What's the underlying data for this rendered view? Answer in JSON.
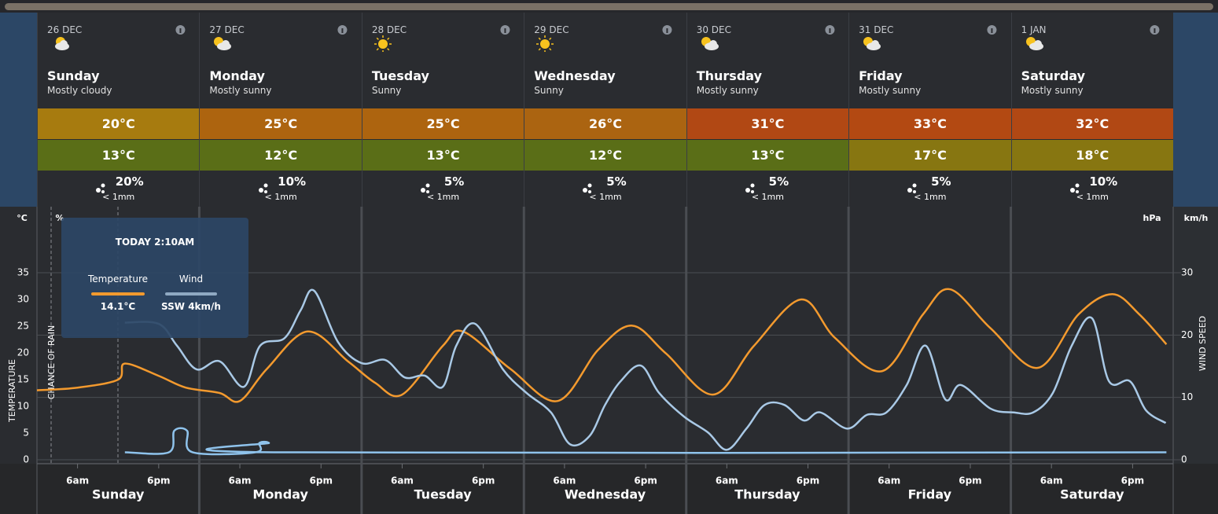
{
  "days": [
    {
      "date": "26 DEC",
      "day": "Sunday",
      "summary": "Mostly cloudy",
      "icon": "cloudy",
      "max": "20°C",
      "min": "13°C",
      "rain": "20%",
      "amount": "< 1mm",
      "max_color": "#a77b0f",
      "min_color": "#5a6e17"
    },
    {
      "date": "27 DEC",
      "day": "Monday",
      "summary": "Mostly sunny",
      "icon": "partly",
      "max": "25°C",
      "min": "12°C",
      "rain": "10%",
      "amount": "< 1mm",
      "max_color": "#ad640f",
      "min_color": "#5a6e17"
    },
    {
      "date": "28 DEC",
      "day": "Tuesday",
      "summary": "Sunny",
      "icon": "sunny",
      "max": "25°C",
      "min": "13°C",
      "rain": "5%",
      "amount": "< 1mm",
      "max_color": "#ad640f",
      "min_color": "#5a6e17"
    },
    {
      "date": "29 DEC",
      "day": "Wednesday",
      "summary": "Sunny",
      "icon": "sunny",
      "max": "26°C",
      "min": "12°C",
      "rain": "5%",
      "amount": "< 1mm",
      "max_color": "#ab6411",
      "min_color": "#5a6e17"
    },
    {
      "date": "30 DEC",
      "day": "Thursday",
      "summary": "Mostly sunny",
      "icon": "partly",
      "max": "31°C",
      "min": "13°C",
      "rain": "5%",
      "amount": "< 1mm",
      "max_color": "#b14814",
      "min_color": "#5a6e17"
    },
    {
      "date": "31 DEC",
      "day": "Friday",
      "summary": "Mostly sunny",
      "icon": "partly",
      "max": "33°C",
      "min": "17°C",
      "rain": "5%",
      "amount": "< 1mm",
      "max_color": "#b34912",
      "min_color": "#877611"
    },
    {
      "date": "1 JAN",
      "day": "Saturday",
      "summary": "Mostly sunny",
      "icon": "partly",
      "max": "32°C",
      "min": "18°C",
      "rain": "10%",
      "amount": "< 1mm",
      "max_color": "#b14814",
      "min_color": "#877611"
    }
  ],
  "chart_data": {
    "type": "line",
    "axis_labels": {
      "y": "°C",
      "y3": "%",
      "pressure": "hPa",
      "y2": "km/h"
    },
    "y_title": "TEMPERATURE",
    "y3_title": "CHANCE OF RAIN",
    "y2_title": "WIND SPEED",
    "xlim": [
      0,
      168
    ],
    "xticks": [
      {
        "value": 6,
        "label": "6am"
      },
      {
        "value": 18,
        "label": "6pm"
      },
      {
        "value": 30,
        "label": "6am"
      },
      {
        "value": 42,
        "label": "6pm"
      },
      {
        "value": 54,
        "label": "6am"
      },
      {
        "value": 66,
        "label": "6pm"
      },
      {
        "value": 78,
        "label": "6am"
      },
      {
        "value": 90,
        "label": "6pm"
      },
      {
        "value": 102,
        "label": "6am"
      },
      {
        "value": 114,
        "label": "6pm"
      },
      {
        "value": 126,
        "label": "6am"
      },
      {
        "value": 138,
        "label": "6pm"
      },
      {
        "value": 150,
        "label": "6am"
      },
      {
        "value": 162,
        "label": "6pm"
      }
    ],
    "ylim": [
      0,
      35
    ],
    "yticks": [
      0,
      5,
      10,
      15,
      20,
      25,
      30,
      35
    ],
    "y2lim": [
      0,
      30
    ],
    "y2ticks": [
      0,
      10,
      20,
      30
    ],
    "y3lim": [
      0,
      100
    ],
    "grid": true,
    "series": [
      {
        "name": "Temperature",
        "color": "#f39a2e",
        "x": [
          0,
          6,
          12,
          13,
          18,
          22,
          27,
          30,
          34,
          40,
          46,
          50,
          54,
          60,
          63,
          70,
          77,
          83,
          88,
          93,
          100,
          106,
          113,
          118,
          125,
          131,
          135,
          141,
          148,
          154,
          159,
          163,
          167
        ],
        "values": [
          13,
          13.5,
          15,
          18,
          15.7,
          13.5,
          12.5,
          11,
          17,
          24,
          18.4,
          14.4,
          12.2,
          21.3,
          24,
          17,
          11,
          20.6,
          25.1,
          19.9,
          12.2,
          21.3,
          30,
          22.8,
          16.6,
          27.2,
          31.9,
          24.6,
          17.2,
          27.2,
          31,
          27.2,
          21.6
        ]
      },
      {
        "name": "Wind",
        "color": "#a9c9e6",
        "axis": "y2",
        "x": [
          13,
          18,
          20.7,
          23.6,
          27,
          30.6,
          33,
          36.6,
          39,
          41,
          44.5,
          48,
          51.5,
          54.4,
          57.3,
          60,
          62,
          64.8,
          68.9,
          72.4,
          76,
          78.8,
          81.7,
          84,
          86.3,
          89.3,
          92,
          95.7,
          99.2,
          102,
          104.9,
          107.6,
          110.5,
          113.4,
          115.8,
          119.8,
          122.7,
          125.6,
          128.6,
          131.4,
          134.3,
          136.6,
          141,
          144.4,
          147.3,
          150.2,
          153,
          156,
          158.5,
          161.6,
          164,
          166.9
        ],
        "values": [
          22,
          21.8,
          18.3,
          14.5,
          15.8,
          11.7,
          18.3,
          19.5,
          24,
          27.1,
          18.9,
          15.5,
          16,
          13.2,
          13.5,
          11.7,
          18.3,
          21.8,
          14.5,
          10.7,
          7.6,
          2.5,
          3.8,
          8.8,
          12.6,
          15.1,
          10.7,
          6.9,
          4.4,
          1.6,
          5,
          8.8,
          8.8,
          6.3,
          7.6,
          5,
          7.2,
          7.6,
          12,
          18.3,
          9.7,
          12,
          8.2,
          7.6,
          7.6,
          10.7,
          18.3,
          22.7,
          12.6,
          12.6,
          7.9,
          5.9
        ]
      },
      {
        "color": "#8fc3ec",
        "axis": "y3",
        "x": [
          13,
          19.5,
          20.3,
          22.2,
          23,
          32.3,
          32.9,
          34.3,
          35,
          167
        ],
        "values": [
          4,
          4,
          15.5,
          15.5,
          4,
          4,
          9,
          9,
          4,
          4
        ]
      }
    ],
    "tooltip": {
      "title": "TODAY 2:10AM",
      "temperature": "14.1°C",
      "wind": "SSW 4km/h"
    }
  }
}
